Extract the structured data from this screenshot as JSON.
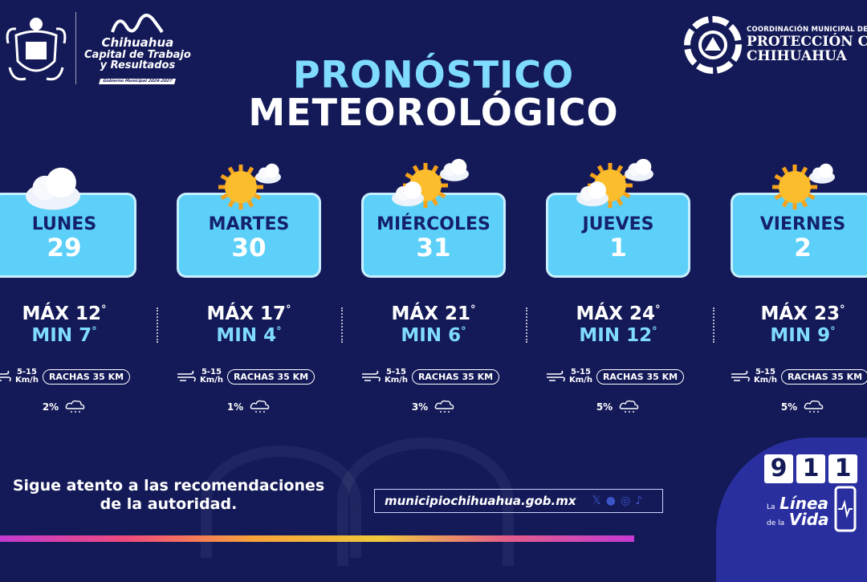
{
  "header": {
    "brand": {
      "line1": "Chihuahua",
      "line2": "Capital de Trabajo",
      "line3": "y Resultados",
      "tag": "Gobierno Municipal 2024-2027"
    },
    "agency": {
      "small": "COORDINACIÓN MUNICIPAL DE",
      "line1": "PROTECCIÓN C",
      "line2": "CHIHUAHUA"
    }
  },
  "title": {
    "line1": "PRONÓSTICO",
    "line2": "METEOROLÓGICO"
  },
  "days": [
    {
      "name": "LUNES",
      "date": "29",
      "max": "MÁX 12",
      "min": "MIN 7",
      "wind": "5-15",
      "wind_unit": "Km/h",
      "gust": "RACHAS 35 KM",
      "rain": "2%",
      "icon": "cloudy"
    },
    {
      "name": "MARTES",
      "date": "30",
      "max": "MÁX 17",
      "min": "MIN 4",
      "wind": "5-15",
      "wind_unit": "Km/h",
      "gust": "RACHAS 35 KM",
      "rain": "1%",
      "icon": "sunny-small-cloud"
    },
    {
      "name": "MIÉRCOLES",
      "date": "31",
      "max": "MÁX 21",
      "min": "MIN 6",
      "wind": "5-15",
      "wind_unit": "Km/h",
      "gust": "RACHAS 35 KM",
      "rain": "3%",
      "icon": "partly-cloudy"
    },
    {
      "name": "JUEVES",
      "date": "1",
      "max": "MÁX 24",
      "min": "MIN 12",
      "wind": "5-15",
      "wind_unit": "Km/h",
      "gust": "RACHAS 35 KM",
      "rain": "5%",
      "icon": "partly-cloudy"
    },
    {
      "name": "VIERNES",
      "date": "2",
      "max": "MÁX 23",
      "min": "MIN 9",
      "wind": "5-15",
      "wind_unit": "Km/h",
      "gust": "RACHAS 35 KM",
      "rain": "5%",
      "icon": "sunny-small-cloud"
    }
  ],
  "degree": "°",
  "footer": {
    "advice1": "Sigue atento a las recomendaciones",
    "advice2": "de la autoridad.",
    "website": "municipiochihuahua.gob.mx",
    "social": [
      "x-icon",
      "facebook-icon",
      "instagram-icon",
      "tiktok-icon"
    ],
    "hotline": [
      "9",
      "1",
      "1"
    ],
    "hotline_la": "La",
    "hotline_linea": "Línea",
    "hotline_dela": "de la",
    "hotline_vida": "Vida"
  },
  "colors": {
    "background": "#141a58",
    "card": "#5cd0f8",
    "accent": "#7fdcff"
  }
}
